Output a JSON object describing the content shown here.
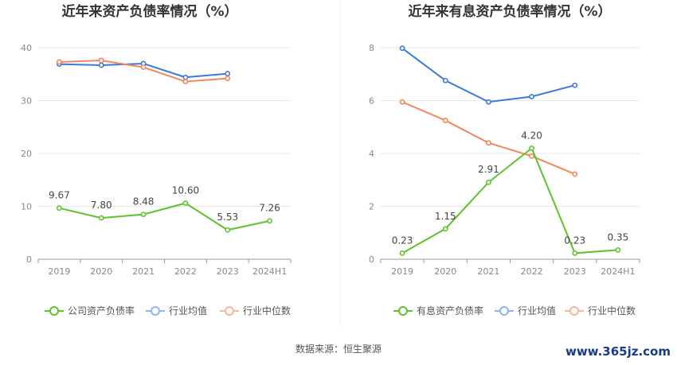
{
  "chart_data": [
    {
      "type": "line",
      "title": "近年来资产负债率情况（%）",
      "categories": [
        "2019",
        "2020",
        "2021",
        "2022",
        "2023",
        "2024H1"
      ],
      "ylim": [
        0,
        40
      ],
      "yticks": [
        0,
        10,
        20,
        30,
        40
      ],
      "grid": true,
      "legend_position": "bottom",
      "series": [
        {
          "name": "公司资产负债率",
          "color": "#5ec22b",
          "values": [
            9.67,
            7.8,
            8.48,
            10.6,
            5.53,
            7.26
          ],
          "labels": [
            "9.67",
            "7.80",
            "8.48",
            "10.60",
            "5.53",
            "7.26"
          ]
        },
        {
          "name": "行业均值",
          "color": "#3b78e0",
          "values": [
            36.9,
            36.7,
            37.0,
            34.4,
            35.1,
            null
          ]
        },
        {
          "name": "行业中位数",
          "color": "#f3875a",
          "values": [
            37.3,
            37.6,
            36.3,
            33.6,
            34.2,
            null
          ]
        }
      ]
    },
    {
      "type": "line",
      "title": "近年来有息资产负债率情况（%）",
      "categories": [
        "2019",
        "2020",
        "2021",
        "2022",
        "2023",
        "2024H1"
      ],
      "ylim": [
        0,
        8
      ],
      "yticks": [
        0,
        2,
        4,
        6,
        8
      ],
      "grid": true,
      "legend_position": "bottom",
      "series": [
        {
          "name": "有息资产负债率",
          "color": "#5ec22b",
          "values": [
            0.23,
            1.15,
            2.91,
            4.2,
            0.23,
            0.35
          ],
          "labels": [
            "0.23",
            "1.15",
            "2.91",
            "4.20",
            "0.23",
            "0.35"
          ]
        },
        {
          "name": "行业均值",
          "color": "#3b78e0",
          "values": [
            7.98,
            6.76,
            5.95,
            6.15,
            6.58,
            null
          ]
        },
        {
          "name": "行业中位数",
          "color": "#f3875a",
          "values": [
            5.95,
            5.25,
            4.4,
            3.9,
            3.22,
            null
          ]
        }
      ]
    }
  ],
  "footer": {
    "source": "数据来源：恒生聚源",
    "watermark": "www.365jz.com"
  }
}
